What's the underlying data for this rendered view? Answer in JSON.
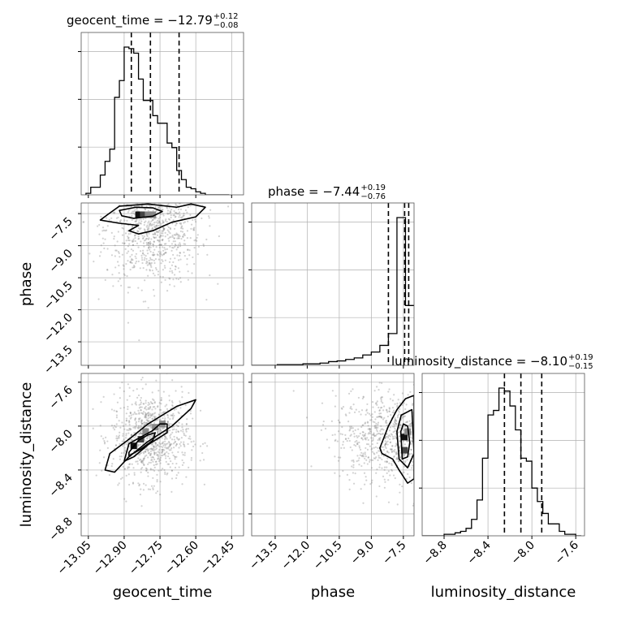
{
  "chart_data": {
    "type": "corner",
    "parameters": [
      "geocent_time",
      "phase",
      "luminosity_distance"
    ],
    "titles": [
      {
        "text": "geocent_time = −12.79",
        "plus": "+0.12",
        "minus": "−0.08"
      },
      {
        "text": "phase = −7.44",
        "plus": "+0.19",
        "minus": "−0.76"
      },
      {
        "text": "luminosity_distance = −8.10",
        "plus": "+0.19",
        "minus": "−0.15"
      }
    ],
    "axes": {
      "geocent_time": {
        "range": [
          -13.08,
          -12.4
        ],
        "ticks": [
          -13.05,
          -12.9,
          -12.75,
          -12.6,
          -12.45
        ],
        "tick_labels": [
          "−13.05",
          "−12.90",
          "−12.75",
          "−12.60",
          "−12.45"
        ]
      },
      "phase": {
        "range": [
          -14.6,
          -7.0
        ],
        "ticks": [
          -13.5,
          -12.0,
          -10.5,
          -9.0,
          -7.5
        ],
        "tick_labels": [
          "−13.5",
          "−12.0",
          "−10.5",
          "−9.0",
          "−7.5"
        ]
      },
      "luminosity_distance": {
        "range": [
          -9.0,
          -7.52
        ],
        "ticks": [
          -8.8,
          -8.4,
          -8.0,
          -7.6
        ],
        "tick_labels": [
          "−8.8",
          "−8.4",
          "−8.0",
          "−7.6"
        ]
      }
    },
    "histograms": {
      "geocent_time": {
        "bin_edges": [
          -13.06,
          -13.04,
          -13.02,
          -13.0,
          -12.98,
          -12.96,
          -12.94,
          -12.92,
          -12.9,
          -12.88,
          -12.86,
          -12.84,
          -12.82,
          -12.8,
          -12.78,
          -12.76,
          -12.74,
          -12.72,
          -12.7,
          -12.68,
          -12.66,
          -12.64,
          -12.62,
          -12.6,
          -12.58,
          -12.56,
          -12.54,
          -12.52,
          -12.5,
          -12.48,
          -12.46
        ],
        "counts": [
          0.01,
          0.05,
          0.05,
          0.13,
          0.22,
          0.3,
          0.64,
          0.75,
          0.97,
          0.96,
          0.93,
          0.76,
          0.62,
          0.62,
          0.52,
          0.47,
          0.47,
          0.34,
          0.31,
          0.16,
          0.1,
          0.05,
          0.04,
          0.02,
          0.01,
          0.0,
          0.0,
          0.0,
          0.0,
          0.0
        ],
        "quantiles": [
          -12.87,
          -12.79,
          -12.67
        ]
      },
      "phase": {
        "bin_edges": [
          -14.6,
          -14.2,
          -13.8,
          -13.4,
          -13.0,
          -12.6,
          -12.2,
          -11.8,
          -11.4,
          -11.0,
          -10.6,
          -10.2,
          -9.8,
          -9.4,
          -9.0,
          -8.6,
          -8.2,
          -7.8,
          -7.4,
          -7.0
        ],
        "counts": [
          0.0,
          0.0,
          0.0,
          0.01,
          0.01,
          0.01,
          0.02,
          0.02,
          0.03,
          0.05,
          0.06,
          0.08,
          0.1,
          0.14,
          0.18,
          0.27,
          0.43,
          2.0,
          0.81
        ],
        "quantiles": [
          -8.2,
          -7.44,
          -7.25
        ]
      },
      "luminosity_distance": {
        "bin_edges": [
          -9.0,
          -8.95,
          -8.9,
          -8.85,
          -8.8,
          -8.75,
          -8.7,
          -8.65,
          -8.6,
          -8.55,
          -8.5,
          -8.45,
          -8.4,
          -8.35,
          -8.3,
          -8.25,
          -8.2,
          -8.15,
          -8.1,
          -8.05,
          -8.0,
          -7.95,
          -7.9,
          -7.85,
          -7.8,
          -7.75,
          -7.7,
          -7.65,
          -7.6,
          -7.55
        ],
        "counts": [
          0.0,
          0.0,
          0.0,
          0.0,
          0.01,
          0.01,
          0.02,
          0.03,
          0.05,
          0.11,
          0.24,
          0.52,
          0.81,
          0.84,
          0.99,
          0.97,
          0.87,
          0.71,
          0.52,
          0.5,
          0.32,
          0.23,
          0.15,
          0.08,
          0.08,
          0.03,
          0.01,
          0.01,
          0.0
        ],
        "quantiles": [
          -8.25,
          -8.1,
          -7.91
        ]
      }
    },
    "pairs": [
      {
        "x": "geocent_time",
        "y": "phase",
        "density_peaks": [
          [
            -12.84,
            -7.55
          ],
          [
            -12.82,
            -7.55
          ],
          [
            -12.8,
            -7.55
          ],
          [
            -12.78,
            -7.55
          ]
        ],
        "contours": [
          [
            [
              -12.92,
              -7.35
            ],
            [
              -12.85,
              -7.2
            ],
            [
              -12.78,
              -7.23
            ],
            [
              -12.74,
              -7.4
            ],
            [
              -12.78,
              -7.62
            ],
            [
              -12.86,
              -7.72
            ],
            [
              -12.91,
              -7.6
            ]
          ],
          [
            [
              -12.97,
              -7.55
            ],
            [
              -12.92,
              -7.15
            ],
            [
              -12.8,
              -7.05
            ],
            [
              -12.68,
              -7.2
            ],
            [
              -12.62,
              -7.05
            ],
            [
              -12.56,
              -7.2
            ],
            [
              -12.6,
              -7.65
            ],
            [
              -12.7,
              -7.9
            ],
            [
              -12.78,
              -8.3
            ],
            [
              -12.84,
              -8.45
            ],
            [
              -12.88,
              -8.3
            ],
            [
              -12.84,
              -8.05
            ],
            [
              -12.92,
              -7.95
            ],
            [
              -13.0,
              -7.8
            ]
          ]
        ],
        "scatter_center": [
          -12.78,
          -8.2
        ],
        "scatter_spread": [
          0.1,
          1.3
        ]
      },
      {
        "x": "geocent_time",
        "y": "luminosity_distance",
        "density_peaks": [
          [
            -12.86,
            -8.18
          ],
          [
            -12.83,
            -8.12
          ],
          [
            -12.81,
            -8.05
          ],
          [
            -12.77,
            -8.01
          ],
          [
            -12.74,
            -7.98
          ]
        ],
        "contours": [
          [
            [
              -12.88,
              -8.24
            ],
            [
              -12.84,
              -8.13
            ],
            [
              -12.8,
              -8.08
            ],
            [
              -12.77,
              -8.06
            ],
            [
              -12.78,
              -8.13
            ],
            [
              -12.83,
              -8.21
            ],
            [
              -12.88,
              -8.27
            ]
          ],
          [
            [
              -12.9,
              -8.32
            ],
            [
              -12.88,
              -8.16
            ],
            [
              -12.78,
              -8.04
            ],
            [
              -12.75,
              -7.98
            ],
            [
              -12.72,
              -7.98
            ],
            [
              -12.72,
              -8.06
            ],
            [
              -12.8,
              -8.17
            ],
            [
              -12.86,
              -8.28
            ]
          ],
          [
            [
              -12.98,
              -8.4
            ],
            [
              -12.96,
              -8.25
            ],
            [
              -12.88,
              -8.12
            ],
            [
              -12.8,
              -7.98
            ],
            [
              -12.68,
              -7.82
            ],
            [
              -12.6,
              -7.76
            ],
            [
              -12.62,
              -7.84
            ],
            [
              -12.7,
              -8.0
            ],
            [
              -12.8,
              -8.14
            ],
            [
              -12.88,
              -8.28
            ],
            [
              -12.94,
              -8.42
            ]
          ]
        ],
        "scatter_center": [
          -12.79,
          -8.1
        ],
        "scatter_spread": [
          0.08,
          0.2
        ]
      },
      {
        "x": "phase",
        "y": "luminosity_distance",
        "density_peaks": [
          [
            -7.45,
            -8.1
          ],
          [
            -7.45,
            -8.22
          ],
          [
            -7.3,
            -8.05
          ]
        ],
        "contours": [
          [
            [
              -7.62,
              -8.05
            ],
            [
              -7.5,
              -7.98
            ],
            [
              -7.3,
              -8.0
            ],
            [
              -7.2,
              -8.15
            ],
            [
              -7.3,
              -8.28
            ],
            [
              -7.55,
              -8.3
            ]
          ],
          [
            [
              -7.8,
              -8.05
            ],
            [
              -7.6,
              -7.9
            ],
            [
              -7.1,
              -7.85
            ],
            [
              -7.0,
              -8.25
            ],
            [
              -7.3,
              -8.38
            ],
            [
              -7.7,
              -8.3
            ]
          ],
          [
            [
              -8.6,
              -8.2
            ],
            [
              -8.2,
              -8.0
            ],
            [
              -7.8,
              -7.85
            ],
            [
              -7.4,
              -7.75
            ],
            [
              -7.0,
              -7.72
            ],
            [
              -7.0,
              -8.48
            ],
            [
              -7.3,
              -8.52
            ],
            [
              -7.7,
              -8.4
            ],
            [
              -8.0,
              -8.3
            ],
            [
              -8.5,
              -8.25
            ]
          ]
        ],
        "scatter_center": [
          -7.9,
          -8.1
        ],
        "scatter_spread": [
          1.4,
          0.2
        ]
      }
    ],
    "grid": true,
    "colors": {
      "line": "#000000",
      "grid": "#b0b0b0",
      "scatter": "#7f7f7f"
    }
  }
}
